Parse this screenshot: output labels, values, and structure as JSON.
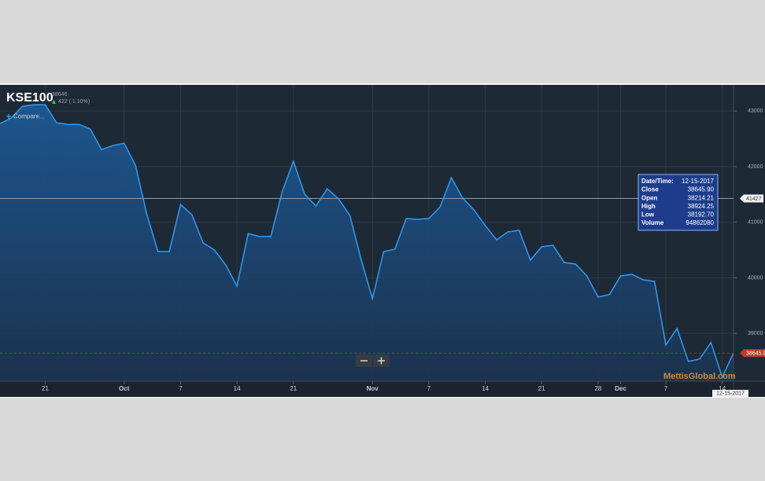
{
  "header": {
    "symbol": "KSE100",
    "price": "38646",
    "change": "422 ( 1.10%)",
    "compare": "Compare..."
  },
  "tooltip": {
    "rows": [
      [
        "Date/Time:",
        "12-15-2017"
      ],
      [
        "Close",
        "38645.90"
      ],
      [
        "Open",
        "38214.21"
      ],
      [
        "High",
        "38924.25"
      ],
      [
        "Low",
        "38192.70"
      ],
      [
        "Volume",
        "94862080"
      ]
    ]
  },
  "watermark": "MettisGlobal.com",
  "chart_data": {
    "type": "area",
    "categories": [
      null,
      null,
      null,
      null,
      "21",
      null,
      null,
      null,
      null,
      null,
      null,
      "Oct",
      null,
      null,
      null,
      null,
      "7",
      null,
      null,
      null,
      null,
      "14",
      null,
      null,
      null,
      null,
      "21",
      null,
      null,
      null,
      null,
      null,
      null,
      "Nov",
      null,
      null,
      null,
      null,
      "7",
      null,
      null,
      null,
      null,
      "14",
      null,
      null,
      null,
      null,
      "21",
      null,
      null,
      null,
      null,
      "28",
      null,
      "Dec",
      null,
      null,
      null,
      "7",
      null,
      null,
      null,
      null,
      "14",
      null
    ],
    "series": [
      {
        "name": "KSE100",
        "color": "#2e9cf5",
        "values": [
          42774,
          42873,
          43085,
          43113,
          43113,
          42788,
          42760,
          42760,
          42675,
          42308,
          42379,
          42421,
          42026,
          41150,
          40472,
          40472,
          41320,
          41136,
          40628,
          40501,
          40232,
          39851,
          40797,
          40741,
          40741,
          41546,
          42096,
          41503,
          41291,
          41602,
          41419,
          41122,
          40331,
          39625,
          40472,
          40515,
          41066,
          41051,
          41066,
          41277,
          41800,
          41433,
          41221,
          40938,
          40684,
          40825,
          40854,
          40317,
          40557,
          40585,
          40275,
          40247,
          40035,
          39654,
          39696,
          40035,
          40063,
          39964,
          39936,
          38792,
          39089,
          38495,
          38538,
          38835,
          38213,
          38645.9
        ]
      }
    ],
    "ylim": [
      38140,
      43470
    ],
    "yticks": [
      39000,
      40000,
      41000,
      42000,
      43000
    ],
    "grid": true,
    "crosshair": 41427,
    "last_price": {
      "value": 38645.9,
      "label": "38645.90"
    }
  }
}
